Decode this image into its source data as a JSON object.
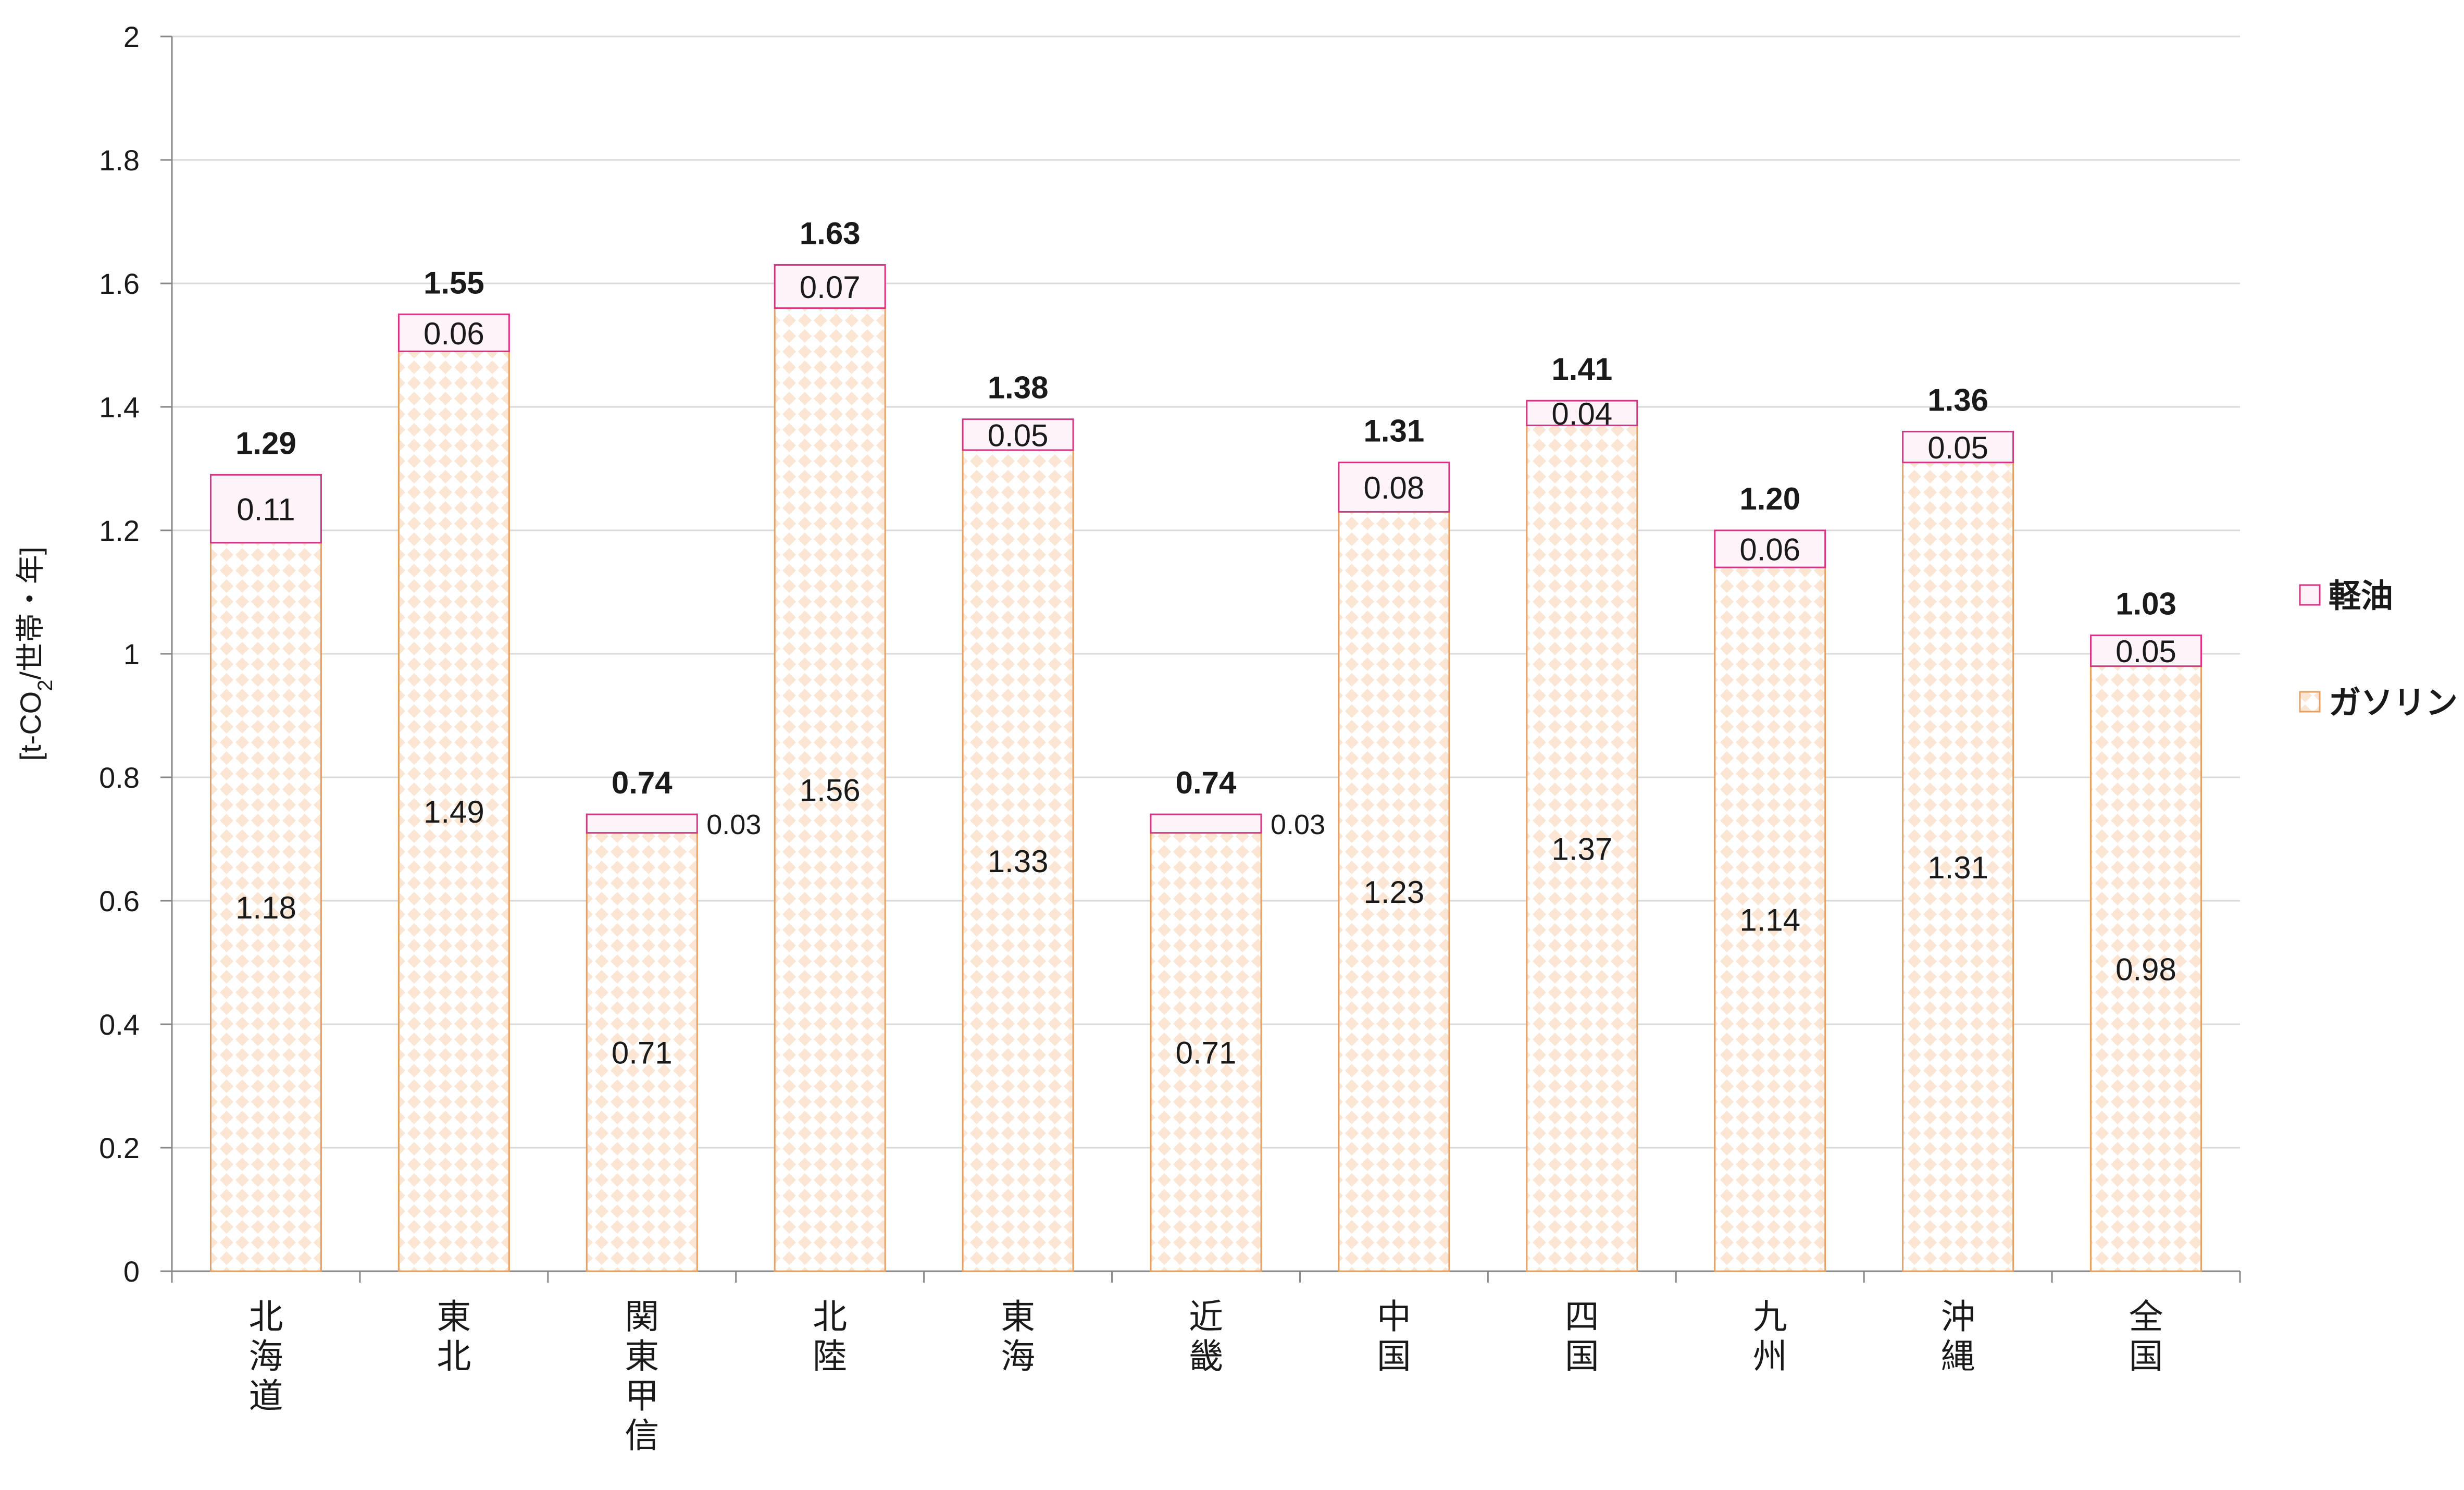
{
  "chart_data": {
    "type": "bar",
    "stacked": true,
    "title": "",
    "xlabel": "",
    "ylabel": "[t-CO₂/世帯・年]",
    "ylim": [
      0,
      2
    ],
    "yticks": [
      0,
      0.2,
      0.4,
      0.6,
      0.8,
      1,
      1.2,
      1.4,
      1.6,
      1.8,
      2
    ],
    "ytick_labels": [
      "0",
      "0.2",
      "0.4",
      "0.6",
      "0.8",
      "1",
      "1.2",
      "1.4",
      "1.6",
      "1.8",
      "2"
    ],
    "grid": true,
    "legend_position": "right",
    "categories": [
      "北海道",
      "東北",
      "関東甲信",
      "北陸",
      "東海",
      "近畿",
      "中国",
      "四国",
      "九州",
      "沖縄",
      "全国"
    ],
    "series": [
      {
        "name": "ガソリン",
        "values": [
          1.18,
          1.49,
          0.71,
          1.56,
          1.33,
          0.71,
          1.23,
          1.37,
          1.14,
          1.31,
          0.98
        ],
        "labels": [
          "1.18",
          "1.49",
          "0.71",
          "1.56",
          "1.33",
          "0.71",
          "1.23",
          "1.37",
          "1.14",
          "1.31",
          "0.98"
        ],
        "color": "#e8a060",
        "pattern_color": "#fbe6d4"
      },
      {
        "name": "軽油",
        "values": [
          0.11,
          0.06,
          0.03,
          0.07,
          0.05,
          0.03,
          0.08,
          0.04,
          0.06,
          0.05,
          0.05
        ],
        "labels": [
          "0.11",
          "0.06",
          "0.03",
          "0.07",
          "0.05",
          "0.03",
          "0.08",
          "0.04",
          "0.06",
          "0.05",
          "0.05"
        ],
        "color": "#d63384",
        "fill": "#fdf3f8"
      }
    ],
    "totals": [
      1.29,
      1.55,
      0.74,
      1.63,
      1.38,
      0.74,
      1.31,
      1.41,
      1.2,
      1.36,
      1.03
    ],
    "total_labels": [
      "1.29",
      "1.55",
      "0.74",
      "1.63",
      "1.38",
      "0.74",
      "1.31",
      "1.41",
      "1.20",
      "1.36",
      "1.03"
    ],
    "legend_order": [
      "軽油",
      "ガソリン"
    ]
  }
}
